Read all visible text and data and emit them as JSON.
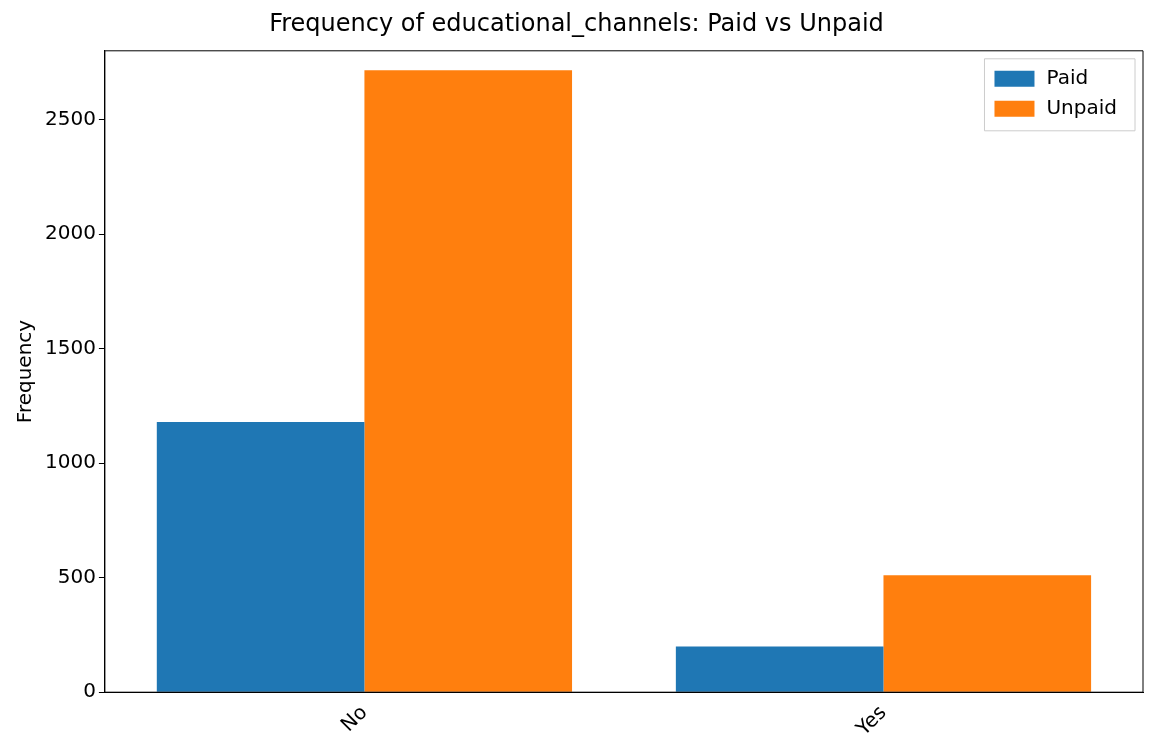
{
  "chart_data": {
    "type": "bar",
    "title": "Frequency of educational_channels: Paid vs Unpaid",
    "ylabel": "Frequency",
    "categories": [
      "No",
      "Yes"
    ],
    "series": [
      {
        "name": "Paid",
        "color": "#1f77b4",
        "values": [
          1180,
          200
        ]
      },
      {
        "name": "Unpaid",
        "color": "#ff7f0e",
        "values": [
          2715,
          510
        ]
      }
    ],
    "ylim": [
      0,
      2800
    ],
    "yticks": [
      0,
      500,
      1000,
      1500,
      2000,
      2500
    ],
    "grid": false,
    "legend": "top right"
  }
}
